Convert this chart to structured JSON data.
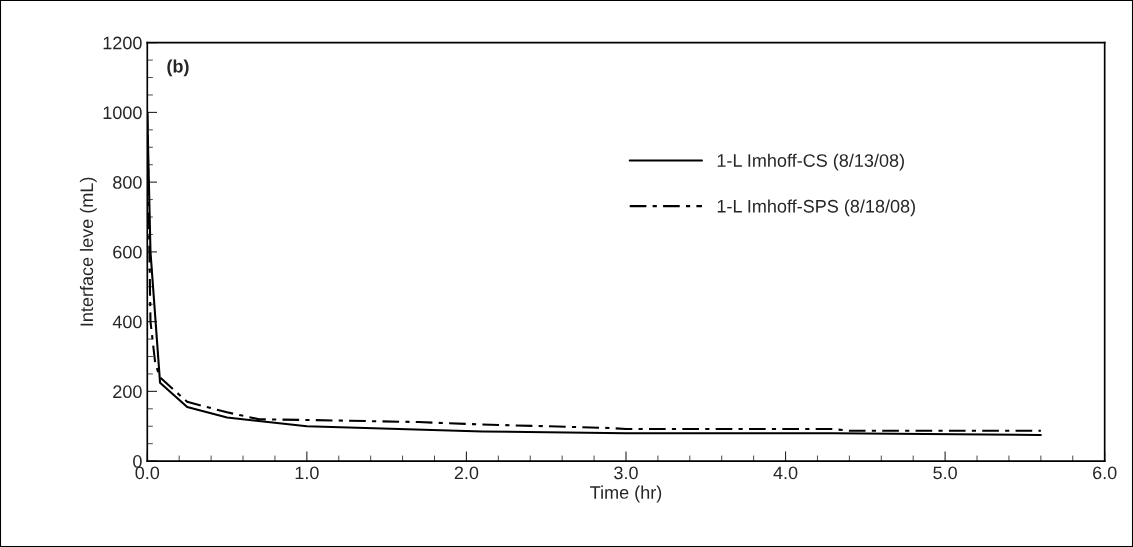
{
  "chart_data": {
    "type": "line",
    "xlabel": "Time (hr)",
    "ylabel": "Interface leve (mL)",
    "annotations": [
      "(b)"
    ],
    "xlim": [
      0,
      6
    ],
    "xticks": [
      {
        "value": 0,
        "label": "0.0"
      },
      {
        "value": 1,
        "label": "1.0"
      },
      {
        "value": 2,
        "label": "2.0"
      },
      {
        "value": 3,
        "label": "3.0"
      },
      {
        "value": 4,
        "label": "4.0"
      },
      {
        "value": 5,
        "label": "5.0"
      },
      {
        "value": 6,
        "label": "6.0"
      }
    ],
    "ylim": [
      0,
      1200
    ],
    "yticks": [
      0,
      200,
      400,
      600,
      800,
      1000,
      1200
    ],
    "grid": false,
    "legend": "right",
    "marker": "none",
    "series": [
      {
        "name": "1-L Imhoff-CS (8/13/08)",
        "color": "#000000",
        "line_style": "solid",
        "x": [
          0,
          0.02,
          0.08,
          0.25,
          0.5,
          1.0,
          2.1,
          3.0,
          4.3,
          5.6
        ],
        "values": [
          1000,
          600,
          225,
          155,
          125,
          100,
          85,
          80,
          80,
          75
        ]
      },
      {
        "name": "1-L Imhoff-SPS (8/18/08)",
        "color": "#000000",
        "line_style": "dashdot",
        "x": [
          0,
          0.02,
          0.05,
          0.08,
          0.25,
          0.5,
          0.7,
          1.0,
          1.7,
          2.1,
          2.5,
          2.9,
          3.0,
          4.3,
          4.4,
          5.6
        ],
        "values": [
          1000,
          400,
          280,
          240,
          170,
          140,
          120,
          118,
          112,
          105,
          100,
          95,
          92,
          92,
          87,
          87
        ]
      }
    ]
  }
}
